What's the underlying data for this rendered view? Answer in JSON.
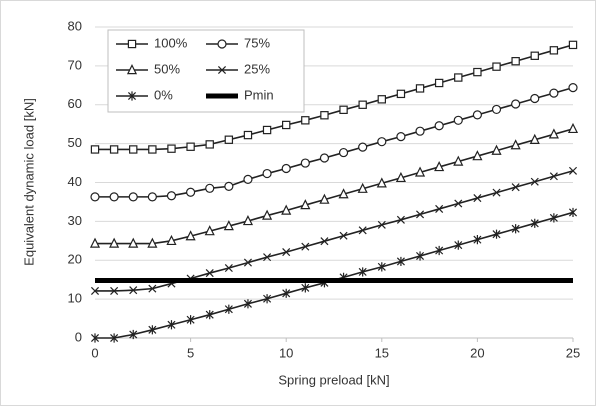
{
  "chart_data": {
    "type": "line",
    "xlabel": "Spring preload [kN]",
    "ylabel": "Equivalent dynamic load [kN]",
    "x": [
      0,
      1,
      2,
      3,
      4,
      5,
      6,
      7,
      8,
      9,
      10,
      11,
      12,
      13,
      14,
      15,
      16,
      17,
      18,
      19,
      20,
      21,
      22,
      23,
      24,
      25
    ],
    "series": [
      {
        "name": "100%",
        "color": "#222222",
        "marker": "square",
        "values": [
          48.5,
          48.5,
          48.5,
          48.5,
          48.7,
          49.2,
          49.8,
          51,
          52.2,
          53.5,
          54.8,
          56,
          57.3,
          58.7,
          60,
          61.4,
          62.8,
          64.2,
          65.6,
          67,
          68.4,
          69.8,
          71.2,
          72.6,
          74,
          75.4
        ]
      },
      {
        "name": "75%",
        "color": "#222222",
        "marker": "circle",
        "values": [
          36.3,
          36.3,
          36.3,
          36.3,
          36.6,
          37.5,
          38.5,
          39,
          40.8,
          42.3,
          43.6,
          45,
          46.3,
          47.7,
          49.1,
          50.5,
          51.8,
          53.2,
          54.6,
          56,
          57.4,
          58.8,
          60.2,
          61.6,
          63,
          64.4
        ]
      },
      {
        "name": "50%",
        "color": "#222222",
        "marker": "triangle",
        "values": [
          24.3,
          24.3,
          24.3,
          24.3,
          25,
          26.2,
          27.5,
          28.8,
          30.1,
          31.5,
          32.8,
          34.2,
          35.6,
          37,
          38.4,
          39.8,
          41.2,
          42.6,
          44,
          45.4,
          46.8,
          48.2,
          49.6,
          51,
          52.4,
          53.8
        ]
      },
      {
        "name": "25%",
        "color": "#222222",
        "marker": "x",
        "values": [
          12.1,
          12.1,
          12.3,
          12.7,
          14,
          15.3,
          16.7,
          18,
          19.4,
          20.8,
          22.1,
          23.5,
          24.9,
          26.3,
          27.7,
          29.1,
          30.4,
          31.8,
          33.2,
          34.6,
          36,
          37.4,
          38.8,
          40.2,
          41.6,
          43
        ]
      },
      {
        "name": "0%",
        "color": "#222222",
        "marker": "star",
        "values": [
          0,
          0,
          0.9,
          2.1,
          3.4,
          4.7,
          6,
          7.4,
          8.8,
          10.1,
          11.5,
          12.9,
          14.2,
          15.6,
          17,
          18.3,
          19.7,
          21.1,
          22.5,
          23.9,
          25.3,
          26.7,
          28.1,
          29.5,
          30.9,
          32.3
        ]
      },
      {
        "name": "Pmin",
        "color": "#000000",
        "marker": "none",
        "values": [
          14.8,
          14.8,
          14.8,
          14.8,
          14.8,
          14.8,
          14.8,
          14.8,
          14.8,
          14.8,
          14.8,
          14.8,
          14.8,
          14.8,
          14.8,
          14.8,
          14.8,
          14.8,
          14.8,
          14.8,
          14.8,
          14.8,
          14.8,
          14.8,
          14.8,
          14.8
        ]
      }
    ],
    "xlim": [
      0,
      25
    ],
    "xticks": [
      0,
      5,
      10,
      15,
      20,
      25
    ],
    "ylim": [
      0,
      80
    ],
    "yticks": [
      0,
      10,
      20,
      30,
      40,
      50,
      60,
      70,
      80
    ],
    "grid": true,
    "legend": "top-left"
  }
}
